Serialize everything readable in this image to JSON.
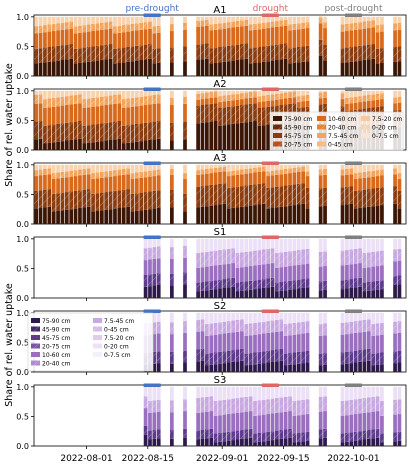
{
  "figure": {
    "ylabel_top": "Share of rel. water uptake",
    "ylabel_bottom": "Share of rel. water uptake",
    "period_labels": [
      {
        "label": "pre-drought",
        "color": "#4472c4",
        "start": "2022-08-14",
        "end": "2022-08-17"
      },
      {
        "label": "drought",
        "color": "#e06666",
        "start": "2022-09-10",
        "end": "2022-09-13"
      },
      {
        "label": "post-drought",
        "color": "#7f7f7f",
        "start": "2022-09-29",
        "end": "2022-10-02"
      }
    ],
    "xaxis": {
      "start": "2022-07-20",
      "end": "2022-10-13",
      "ticks": [
        "2022-08-01",
        "2022-08-15",
        "2022-09-01",
        "2022-09-15",
        "2022-10-01"
      ]
    }
  },
  "legends": {
    "orange": {
      "location": "right, panel A2",
      "entries": [
        "75-90 cm",
        "45-90 cm",
        "45-75 cm",
        "20-75 cm",
        "10-60 cm",
        "20-40 cm",
        "7.5-45 cm",
        "0-45 cm",
        "7.5-20 cm",
        "0-20 cm",
        "0-7.5 cm"
      ]
    },
    "purple": {
      "location": "left, panel S2",
      "entries": [
        "75-90 cm",
        "45-90 cm",
        "45-75 cm",
        "20-75 cm",
        "10-60 cm",
        "20-40 cm",
        "7.5-45 cm",
        "0-45 cm",
        "7.5-20 cm",
        "0-20 cm",
        "0-7.5 cm"
      ]
    }
  },
  "chart_data": [
    {
      "type": "bar",
      "stacked": true,
      "title": "A1",
      "ylim": [
        0,
        1.0
      ],
      "yticks": [
        "0.0",
        "0.5",
        "1.0"
      ],
      "x_start": "2022-07-20",
      "layers": [
        "75-90 cm",
        "45-75 cm",
        "20-40 cm",
        "7.5-20 cm",
        "0-7.5 cm"
      ],
      "segments": [
        {
          "from": "2022-07-20",
          "to": "2022-08-17",
          "values": [
            0.25,
            0.25,
            0.26,
            0.12,
            0.12
          ]
        },
        {
          "from": "2022-08-20",
          "to": "2022-08-20",
          "values": [
            0.25,
            0.25,
            0.28,
            0.12,
            0.1
          ]
        },
        {
          "from": "2022-08-23",
          "to": "2022-08-23",
          "values": [
            0.25,
            0.25,
            0.28,
            0.12,
            0.1
          ]
        },
        {
          "from": "2022-08-26",
          "to": "2022-09-20",
          "values": [
            0.25,
            0.26,
            0.3,
            0.1,
            0.09
          ]
        },
        {
          "from": "2022-09-23",
          "to": "2022-09-24",
          "values": [
            0.3,
            0.27,
            0.28,
            0.1,
            0.05
          ]
        },
        {
          "from": "2022-09-28",
          "to": "2022-10-07",
          "values": [
            0.25,
            0.25,
            0.28,
            0.12,
            0.1
          ]
        },
        {
          "from": "2022-10-10",
          "to": "2022-10-11",
          "values": [
            0.25,
            0.25,
            0.28,
            0.12,
            0.1
          ]
        }
      ]
    },
    {
      "type": "bar",
      "stacked": true,
      "title": "A2",
      "ylim": [
        0,
        1.0
      ],
      "yticks": [
        "0.0",
        "0.5",
        "1.0"
      ],
      "x_start": "2022-07-20",
      "layers": [
        "75-90 cm",
        "45-75 cm",
        "20-40 cm",
        "7.5-20 cm",
        "0-7.5 cm"
      ],
      "segments": [
        {
          "from": "2022-07-20",
          "to": "2022-08-17",
          "values": [
            0.15,
            0.3,
            0.3,
            0.15,
            0.1
          ]
        },
        {
          "from": "2022-08-20",
          "to": "2022-08-20",
          "values": [
            0.2,
            0.3,
            0.3,
            0.12,
            0.08
          ]
        },
        {
          "from": "2022-08-23",
          "to": "2022-08-23",
          "values": [
            0.2,
            0.3,
            0.3,
            0.12,
            0.08
          ]
        },
        {
          "from": "2022-08-26",
          "to": "2022-09-20",
          "values": [
            0.45,
            0.3,
            0.1,
            0.1,
            0.05
          ]
        },
        {
          "from": "2022-09-23",
          "to": "2022-09-24",
          "values": [
            0.45,
            0.3,
            0.1,
            0.1,
            0.05
          ]
        },
        {
          "from": "2022-09-28",
          "to": "2022-10-07",
          "values": [
            0.4,
            0.3,
            0.12,
            0.1,
            0.08
          ]
        },
        {
          "from": "2022-10-10",
          "to": "2022-10-11",
          "values": [
            0.4,
            0.3,
            0.12,
            0.1,
            0.08
          ]
        }
      ]
    },
    {
      "type": "bar",
      "stacked": true,
      "title": "A3",
      "ylim": [
        0,
        1.0
      ],
      "yticks": [
        "0.0",
        "0.5",
        "1.0"
      ],
      "x_start": "2022-07-20",
      "layers": [
        "75-90 cm",
        "45-75 cm",
        "20-40 cm",
        "7.5-20 cm",
        "0-7.5 cm"
      ],
      "segments": [
        {
          "from": "2022-07-20",
          "to": "2022-08-17",
          "values": [
            0.25,
            0.3,
            0.25,
            0.1,
            0.1
          ]
        },
        {
          "from": "2022-08-20",
          "to": "2022-08-20",
          "values": [
            0.25,
            0.3,
            0.25,
            0.1,
            0.1
          ]
        },
        {
          "from": "2022-08-23",
          "to": "2022-08-23",
          "values": [
            0.25,
            0.3,
            0.25,
            0.1,
            0.1
          ]
        },
        {
          "from": "2022-08-26",
          "to": "2022-09-20",
          "values": [
            0.3,
            0.35,
            0.2,
            0.08,
            0.07
          ]
        },
        {
          "from": "2022-09-23",
          "to": "2022-09-24",
          "values": [
            0.3,
            0.3,
            0.22,
            0.1,
            0.08
          ]
        },
        {
          "from": "2022-09-28",
          "to": "2022-10-07",
          "values": [
            0.3,
            0.3,
            0.2,
            0.1,
            0.1
          ]
        },
        {
          "from": "2022-10-10",
          "to": "2022-10-11",
          "values": [
            0.3,
            0.3,
            0.2,
            0.1,
            0.1
          ]
        }
      ]
    },
    {
      "type": "bar",
      "stacked": true,
      "title": "S1",
      "ylim": [
        0,
        1.0
      ],
      "yticks": [
        "0.0",
        "0.5",
        "1.0"
      ],
      "x_start": "2022-07-20",
      "layers": [
        "75-90 cm",
        "45-75 cm",
        "20-40 cm",
        "7.5-20 cm",
        "0-7.5 cm"
      ],
      "segments": [
        {
          "from": "2022-08-14",
          "to": "2022-08-17",
          "values": [
            0.2,
            0.2,
            0.25,
            0.2,
            0.15
          ]
        },
        {
          "from": "2022-08-20",
          "to": "2022-08-20",
          "values": [
            0.2,
            0.2,
            0.25,
            0.2,
            0.15
          ]
        },
        {
          "from": "2022-08-23",
          "to": "2022-08-23",
          "values": [
            0.2,
            0.2,
            0.25,
            0.2,
            0.15
          ]
        },
        {
          "from": "2022-08-26",
          "to": "2022-09-20",
          "values": [
            0.15,
            0.15,
            0.25,
            0.25,
            0.2
          ]
        },
        {
          "from": "2022-09-23",
          "to": "2022-09-24",
          "values": [
            0.15,
            0.15,
            0.25,
            0.25,
            0.2
          ]
        },
        {
          "from": "2022-09-28",
          "to": "2022-10-07",
          "values": [
            0.15,
            0.15,
            0.25,
            0.25,
            0.2
          ]
        },
        {
          "from": "2022-10-10",
          "to": "2022-10-11",
          "values": [
            0.2,
            0.15,
            0.25,
            0.2,
            0.2
          ]
        }
      ]
    },
    {
      "type": "bar",
      "stacked": true,
      "title": "S2",
      "ylim": [
        0,
        1.0
      ],
      "yticks": [
        "0.0",
        "0.5",
        "1.0"
      ],
      "x_start": "2022-07-20",
      "layers": [
        "75-90 cm",
        "45-75 cm",
        "20-40 cm",
        "7.5-20 cm",
        "0-7.5 cm"
      ],
      "segments": [
        {
          "from": "2022-08-14",
          "to": "2022-08-17",
          "values": [
            0.15,
            0.2,
            0.3,
            0.2,
            0.15
          ]
        },
        {
          "from": "2022-08-20",
          "to": "2022-08-20",
          "values": [
            0.15,
            0.2,
            0.3,
            0.2,
            0.15
          ]
        },
        {
          "from": "2022-08-23",
          "to": "2022-08-23",
          "values": [
            0.15,
            0.2,
            0.3,
            0.2,
            0.15
          ]
        },
        {
          "from": "2022-08-26",
          "to": "2022-09-20",
          "values": [
            0.15,
            0.2,
            0.3,
            0.2,
            0.15
          ]
        },
        {
          "from": "2022-09-23",
          "to": "2022-09-24",
          "values": [
            0.15,
            0.2,
            0.3,
            0.2,
            0.15
          ]
        },
        {
          "from": "2022-09-28",
          "to": "2022-10-07",
          "values": [
            0.15,
            0.2,
            0.3,
            0.2,
            0.15
          ]
        },
        {
          "from": "2022-10-10",
          "to": "2022-10-11",
          "values": [
            0.15,
            0.2,
            0.3,
            0.2,
            0.15
          ]
        }
      ]
    },
    {
      "type": "bar",
      "stacked": true,
      "title": "S3",
      "ylim": [
        0,
        1.0
      ],
      "yticks": [
        "0.0",
        "0.5",
        "1.0"
      ],
      "x_start": "2022-07-20",
      "layers": [
        "75-90 cm",
        "45-75 cm",
        "20-40 cm",
        "7.5-20 cm",
        "0-7.5 cm"
      ],
      "segments": [
        {
          "from": "2022-08-14",
          "to": "2022-08-17",
          "values": [
            0.15,
            0.15,
            0.3,
            0.2,
            0.2
          ]
        },
        {
          "from": "2022-08-20",
          "to": "2022-08-20",
          "values": [
            0.15,
            0.15,
            0.3,
            0.2,
            0.2
          ]
        },
        {
          "from": "2022-08-23",
          "to": "2022-08-23",
          "values": [
            0.15,
            0.15,
            0.3,
            0.2,
            0.2
          ]
        },
        {
          "from": "2022-08-26",
          "to": "2022-09-20",
          "values": [
            0.1,
            0.15,
            0.3,
            0.25,
            0.2
          ]
        },
        {
          "from": "2022-09-23",
          "to": "2022-09-24",
          "values": [
            0.1,
            0.15,
            0.3,
            0.25,
            0.2
          ]
        },
        {
          "from": "2022-09-28",
          "to": "2022-10-07",
          "values": [
            0.1,
            0.15,
            0.3,
            0.25,
            0.2
          ]
        },
        {
          "from": "2022-10-10",
          "to": "2022-10-11",
          "values": [
            0.1,
            0.15,
            0.3,
            0.25,
            0.2
          ]
        }
      ]
    }
  ],
  "colors": {
    "orange": [
      "#3b1505",
      "#8a3c0f",
      "#d96a1c",
      "#f2a35c",
      "#f8d3b0"
    ],
    "purple": [
      "#2e1a4a",
      "#5e3b8c",
      "#9a6fc0",
      "#c8a8e0",
      "#ece0f6"
    ],
    "legend_orange": [
      "#3b1505",
      "#6b2a0a",
      "#8a3c0f",
      "#b8521a",
      "#d96a1c",
      "#e8842c",
      "#f2a35c",
      "#f5b981",
      "#f7c89e",
      "#f8d3b0",
      "#fbe5d2"
    ],
    "legend_purple": [
      "#2e1a4a",
      "#46296b",
      "#5e3b8c",
      "#7a55a8",
      "#9a6fc0",
      "#b08bd0",
      "#c8a8e0",
      "#d6bce8",
      "#e0cbef",
      "#ece0f6",
      "#f5eefb"
    ]
  }
}
